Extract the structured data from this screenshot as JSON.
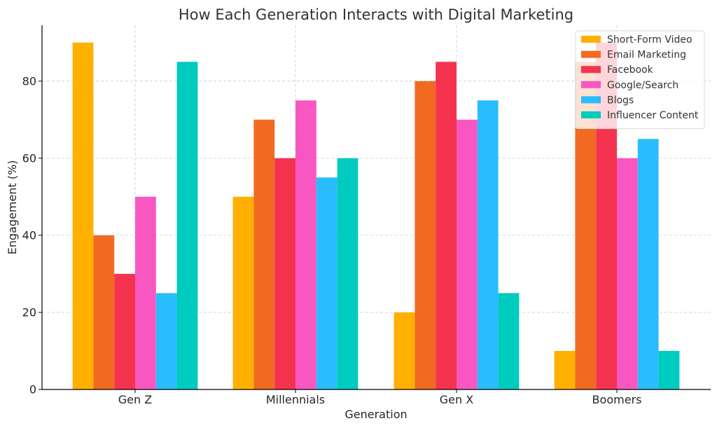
{
  "chart_data": {
    "type": "bar",
    "title": "How Each Generation Interacts with Digital Marketing",
    "xlabel": "Generation",
    "ylabel": "Engagement (%)",
    "categories": [
      "Gen Z",
      "Millennials",
      "Gen X",
      "Boomers"
    ],
    "ylim": [
      0,
      94.5
    ],
    "yticks": [
      0,
      20,
      40,
      60,
      80
    ],
    "grid": true,
    "legend_position": "top-right",
    "series": [
      {
        "name": "Short-Form Video",
        "color": "#FFB000",
        "values": [
          90,
          50,
          20,
          10
        ]
      },
      {
        "name": "Email Marketing",
        "color": "#F26A22",
        "values": [
          40,
          70,
          80,
          85
        ]
      },
      {
        "name": "Facebook",
        "color": "#F5334F",
        "values": [
          30,
          60,
          85,
          90
        ]
      },
      {
        "name": "Google/Search",
        "color": "#F857C1",
        "values": [
          50,
          75,
          70,
          60
        ]
      },
      {
        "name": "Blogs",
        "color": "#29BDFD",
        "values": [
          25,
          55,
          75,
          65
        ]
      },
      {
        "name": "Influencer Content",
        "color": "#00CBBF",
        "values": [
          85,
          60,
          25,
          10
        ]
      }
    ]
  }
}
